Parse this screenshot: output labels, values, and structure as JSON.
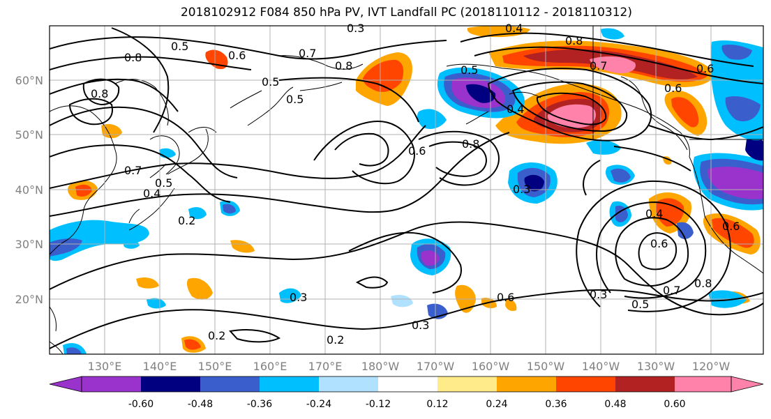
{
  "title": "2018102912 F084 850 hPa PV, IVT Landfall PC (2018110112 - 2018110312)",
  "map": {
    "lat_labels": [
      "60°N",
      "50°N",
      "40°N",
      "30°N",
      "20°N"
    ],
    "lon_labels": [
      "130°E",
      "140°E",
      "150°E",
      "160°E",
      "170°E",
      "180°W",
      "170°W",
      "160°W",
      "150°W",
      "140°W",
      "130°W",
      "120°W"
    ],
    "contour_labels": [
      "0.3",
      "0.4",
      "0.8",
      "0.5",
      "0.6",
      "0.7",
      "0.8",
      "0.5",
      "0.5",
      "0.8",
      "0.6",
      "0.7",
      "0.8",
      "0.6",
      "0.4",
      "0.6",
      "0.8",
      "0.7",
      "0.5",
      "0.4",
      "0.4",
      "0.2",
      "0.3",
      "0.6",
      "0.7",
      "0.8",
      "0.6",
      "0.5",
      "0.3",
      "0.3",
      "0.3",
      "0.2",
      "0.2",
      "0.5",
      "0.6"
    ],
    "colors": {
      "line": "#000000",
      "grid": "#b0b0b0",
      "tick_text": "#808080"
    }
  },
  "colorbar": {
    "tick_labels": [
      "-0.60",
      "-0.48",
      "-0.36",
      "-0.24",
      "-0.12",
      "0.12",
      "0.24",
      "0.36",
      "0.48",
      "0.60"
    ],
    "colors": [
      "#9933cc",
      "#000080",
      "#3a5fcd",
      "#00bfff",
      "#b0e2ff",
      "#ffffff",
      "#ffeb8a",
      "#ffa500",
      "#ff4500",
      "#b22222",
      "#ff82ab"
    ]
  }
}
